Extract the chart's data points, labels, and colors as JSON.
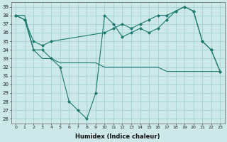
{
  "xlabel": "Humidex (Indice chaleur)",
  "bg_color": "#cce8e8",
  "grid_color": "#99cccc",
  "line_color": "#1a7a6e",
  "xlim": [
    -0.5,
    23.5
  ],
  "ylim": [
    25.5,
    39.5
  ],
  "yticks": [
    26,
    27,
    28,
    29,
    30,
    31,
    32,
    33,
    34,
    35,
    36,
    37,
    38,
    39
  ],
  "xticks": [
    0,
    1,
    2,
    3,
    4,
    5,
    6,
    7,
    8,
    9,
    10,
    11,
    12,
    13,
    14,
    15,
    16,
    17,
    18,
    19,
    20,
    21,
    22,
    23
  ],
  "series": [
    {
      "x": [
        0,
        1,
        2,
        3,
        4,
        10,
        11,
        12,
        13,
        14,
        15,
        16,
        17,
        18,
        19,
        20,
        21,
        22,
        23
      ],
      "y": [
        38,
        37.5,
        35,
        34.5,
        35,
        36,
        36.5,
        37,
        36.5,
        37,
        37.5,
        38,
        38,
        38.5,
        39,
        38.5,
        35,
        34,
        31.5
      ],
      "marker": true
    },
    {
      "x": [
        0,
        1,
        2,
        3,
        4,
        5,
        6,
        7,
        8,
        9,
        10,
        11,
        12,
        13,
        14,
        15,
        16,
        17,
        18,
        19,
        20,
        21,
        22,
        23
      ],
      "y": [
        38,
        37.5,
        34,
        34,
        33,
        32,
        28,
        27,
        26,
        29,
        38,
        37,
        35.5,
        36,
        36.5,
        36,
        36.5,
        37.5,
        38.5,
        39,
        38.5,
        35,
        34,
        31.5
      ],
      "marker": true
    },
    {
      "x": [
        0,
        1,
        2,
        3,
        4,
        5,
        6,
        7,
        8,
        9,
        10,
        11,
        12,
        13,
        14,
        15,
        16,
        17,
        18,
        19,
        20,
        21,
        22,
        23
      ],
      "y": [
        38,
        38,
        34,
        33,
        33,
        32.5,
        32.5,
        32.5,
        32.5,
        32.5,
        32,
        32,
        32,
        32,
        32,
        32,
        32,
        31.5,
        31.5,
        31.5,
        31.5,
        31.5,
        31.5,
        31.5
      ],
      "marker": false
    }
  ]
}
